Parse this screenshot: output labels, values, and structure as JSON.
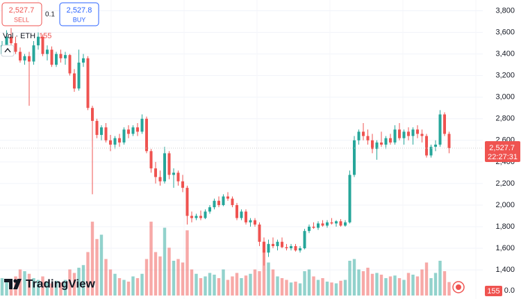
{
  "chart_data": {
    "type": "candlestick",
    "toolbar": {
      "sell_price": "2,527.7",
      "sell_label": "SELL",
      "quantity": "0.1",
      "buy_price": "2,527.8",
      "buy_label": "BUY"
    },
    "volume_legend": "Vol · ETH",
    "brand": "TradingView",
    "last_price": {
      "value": 2527.7,
      "label": "2,527.7"
    },
    "countdown": "22:27:31",
    "up_color": "#26a69a",
    "down_color": "#ef5350",
    "grid": true,
    "ylim": [
      1130,
      3900
    ],
    "yticks": [
      {
        "value": 1400,
        "label": "1,400"
      },
      {
        "value": 1600,
        "label": "1,600"
      },
      {
        "value": 1800,
        "label": "1,800"
      },
      {
        "value": 2000,
        "label": "2,000"
      },
      {
        "value": 2200,
        "label": "2,200"
      },
      {
        "value": 2400,
        "label": "2,400"
      },
      {
        "value": 2600,
        "label": "2,600"
      },
      {
        "value": 2800,
        "label": "2,800"
      },
      {
        "value": 3000,
        "label": "3,000"
      },
      {
        "value": 3200,
        "label": "3,200"
      },
      {
        "value": 3400,
        "label": "3,400"
      },
      {
        "value": 3600,
        "label": "3,600"
      },
      {
        "value": 3800,
        "label": "3,800"
      }
    ],
    "volume_ylim": [
      0,
      3400
    ],
    "volume_yticks": [
      {
        "value": 0,
        "label": "0.0"
      }
    ],
    "open": [
      3400,
      3480,
      3560,
      3500,
      3420,
      3340,
      3380,
      3330,
      3480,
      3560,
      3400,
      3440,
      3300,
      3400,
      3360,
      3390,
      3220,
      3080,
      3320,
      3360,
      2900,
      2780,
      2650,
      2720,
      2600,
      2560,
      2620,
      2580,
      2700,
      2660,
      2720,
      2680,
      2800,
      2500,
      2340,
      2260,
      2220,
      2480,
      2280,
      2300,
      2220,
      2160,
      1900,
      1880,
      1900,
      1880,
      1940,
      1980,
      2040,
      2000,
      2080,
      2060,
      2000,
      1880,
      1940,
      1840,
      1860,
      1820,
      1660,
      1560,
      1640,
      1620,
      1660,
      1610,
      1600,
      1620,
      1580,
      1600,
      1760,
      1800,
      1790,
      1830,
      1810,
      1840,
      1830,
      1850,
      1810,
      1840,
      2280,
      2600,
      2680,
      2640,
      2600,
      2520,
      2580,
      2560,
      2620,
      2580,
      2700,
      2620,
      2680,
      2640,
      2700,
      2660,
      2640,
      2460,
      2540,
      2560,
      2840,
      2660
    ],
    "high": [
      3520,
      3620,
      3640,
      3560,
      3460,
      3400,
      3420,
      3520,
      3600,
      3580,
      3480,
      3470,
      3420,
      3440,
      3420,
      3400,
      3260,
      3440,
      3400,
      3380,
      2920,
      2800,
      2740,
      2760,
      2650,
      2640,
      2660,
      2720,
      2740,
      2740,
      2760,
      2840,
      2820,
      2520,
      2400,
      2320,
      2540,
      2500,
      2340,
      2320,
      2280,
      2180,
      1940,
      1920,
      1950,
      1960,
      2000,
      2060,
      2080,
      2100,
      2120,
      2080,
      2020,
      1960,
      1960,
      1880,
      1880,
      1840,
      1700,
      1680,
      1700,
      1680,
      1700,
      1640,
      1640,
      1640,
      1620,
      1780,
      1820,
      1840,
      1850,
      1860,
      1860,
      1880,
      1860,
      1870,
      1860,
      2320,
      2640,
      2700,
      2760,
      2700,
      2660,
      2600,
      2680,
      2640,
      2660,
      2740,
      2760,
      2700,
      2720,
      2720,
      2740,
      2700,
      2660,
      2560,
      2600,
      2880,
      2860,
      2680
    ],
    "low": [
      3380,
      3450,
      3480,
      3400,
      3320,
      3300,
      2920,
      3300,
      3440,
      3380,
      3340,
      3280,
      3280,
      3320,
      3300,
      3200,
      3050,
      3060,
      3280,
      2880,
      2100,
      2620,
      2600,
      2580,
      2500,
      2520,
      2540,
      2560,
      2620,
      2640,
      2640,
      2660,
      2480,
      2300,
      2200,
      2180,
      2200,
      2240,
      2160,
      2180,
      2120,
      1820,
      1840,
      1860,
      1860,
      1870,
      1920,
      1960,
      1980,
      1990,
      2040,
      1980,
      1860,
      1860,
      1820,
      1800,
      1800,
      1620,
      1440,
      1520,
      1600,
      1580,
      1600,
      1580,
      1580,
      1570,
      1560,
      1590,
      1740,
      1780,
      1770,
      1800,
      1790,
      1820,
      1800,
      1800,
      1800,
      1830,
      2260,
      2560,
      2600,
      2560,
      2480,
      2420,
      2540,
      2520,
      2560,
      2560,
      2600,
      2560,
      2600,
      2560,
      2620,
      2580,
      2440,
      2440,
      2500,
      2540,
      2640,
      2480
    ],
    "close": [
      3480,
      3560,
      3500,
      3420,
      3340,
      3380,
      3330,
      3480,
      3560,
      3400,
      3440,
      3300,
      3400,
      3360,
      3390,
      3220,
      3080,
      3320,
      3360,
      2900,
      2780,
      2650,
      2720,
      2600,
      2560,
      2620,
      2580,
      2700,
      2660,
      2720,
      2680,
      2800,
      2500,
      2340,
      2260,
      2220,
      2480,
      2280,
      2300,
      2220,
      2160,
      1900,
      1880,
      1900,
      1880,
      1940,
      1980,
      2040,
      2000,
      2080,
      2060,
      2000,
      1880,
      1940,
      1840,
      1860,
      1820,
      1660,
      1560,
      1640,
      1620,
      1660,
      1610,
      1600,
      1620,
      1580,
      1600,
      1760,
      1800,
      1790,
      1830,
      1810,
      1840,
      1830,
      1850,
      1810,
      1840,
      2280,
      2600,
      2680,
      2640,
      2600,
      2520,
      2580,
      2560,
      2620,
      2580,
      2700,
      2620,
      2680,
      2640,
      2700,
      2660,
      2640,
      2460,
      2540,
      2560,
      2840,
      2660,
      2527.7
    ],
    "volumes": [
      200,
      180,
      150,
      220,
      300,
      280,
      250,
      200,
      180,
      220,
      160,
      140,
      170,
      150,
      180,
      300,
      260,
      320,
      350,
      500,
      850,
      650,
      700,
      420,
      300,
      250,
      200,
      180,
      160,
      220,
      200,
      250,
      420,
      850,
      500,
      450,
      780,
      550,
      400,
      420,
      380,
      750,
      300,
      250,
      200,
      220,
      260,
      240,
      200,
      300,
      180,
      220,
      260,
      200,
      230,
      250,
      300,
      280,
      620,
      380,
      300,
      220,
      200,
      180,
      150,
      160,
      140,
      280,
      300,
      220,
      180,
      200,
      160,
      150,
      140,
      170,
      180,
      400,
      420,
      300,
      280,
      320,
      250,
      260,
      240,
      200,
      220,
      230,
      200,
      180,
      260,
      240,
      220,
      300,
      380,
      200,
      260,
      400,
      280,
      155
    ]
  }
}
